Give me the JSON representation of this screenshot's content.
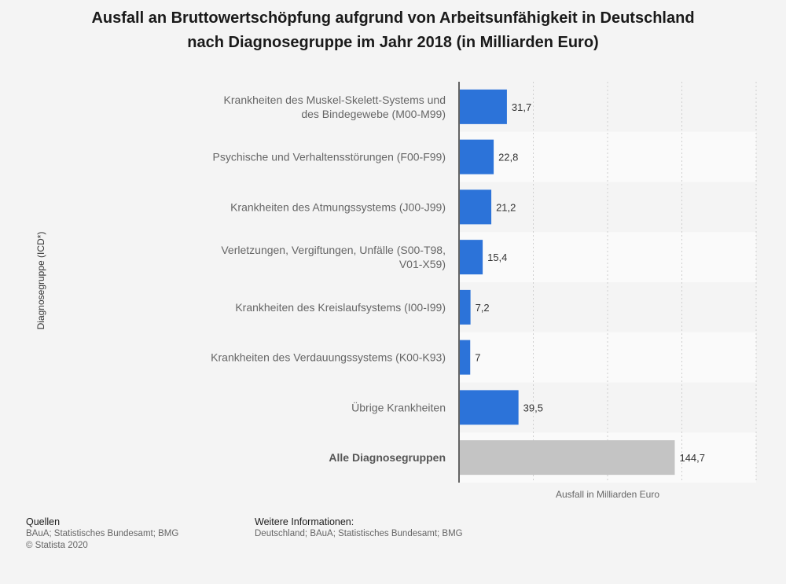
{
  "title_line1": "Ausfall an Bruttowertschöpfung aufgrund von Arbeitsunfähigkeit in Deutschland",
  "title_line2": "nach Diagnosegruppe im Jahr 2018 (in Milliarden Euro)",
  "footer": {
    "sources_heading": "Quellen",
    "sources_text": "BAuA; Statistisches Bundesamt; BMG",
    "copyright": "© Statista 2020",
    "info_heading": "Weitere Informationen:",
    "info_text": "Deutschland; BAuA; Statistisches Bundesamt; BMG"
  },
  "colors": {
    "bar": "#2c73d9",
    "bar_total": "#c4c4c4",
    "band": "#e9e9e9",
    "background": "#f4f4f4"
  },
  "chart_data": {
    "type": "bar",
    "orientation": "horizontal",
    "title": "Ausfall an Bruttowertschöpfung aufgrund von Arbeitsunfähigkeit in Deutschland nach Diagnosegruppe im Jahr 2018 (in Milliarden Euro)",
    "xlabel": "Ausfall in Milliarden Euro",
    "ylabel": "Diagnosegruppe (ICD*)",
    "xlim": [
      0,
      200
    ],
    "grid": true,
    "categories": [
      [
        "Krankheiten des Muskel-Skelett-Systems und",
        "des Bindegewebe (M00-M99)"
      ],
      [
        "Psychische und Verhaltensstörungen (F00-F99)"
      ],
      [
        "Krankheiten des Atmungssystems (J00-J99)"
      ],
      [
        "Verletzungen, Vergiftungen, Unfälle (S00-T98,",
        "V01-X59)"
      ],
      [
        "Krankheiten des Kreislaufsystems (I00-I99)"
      ],
      [
        "Krankheiten des Verdauungssystems (K00-K93)"
      ],
      [
        "Übrige Krankheiten"
      ],
      [
        "Alle Diagnosegruppen"
      ]
    ],
    "values": [
      31.7,
      22.8,
      21.2,
      15.4,
      7.2,
      7,
      39.5,
      144.7
    ],
    "value_labels": [
      "31,7",
      "22,8",
      "21,2",
      "15,4",
      "7,2",
      "7",
      "39,5",
      "144,7"
    ],
    "highlight_total_index": 7
  }
}
